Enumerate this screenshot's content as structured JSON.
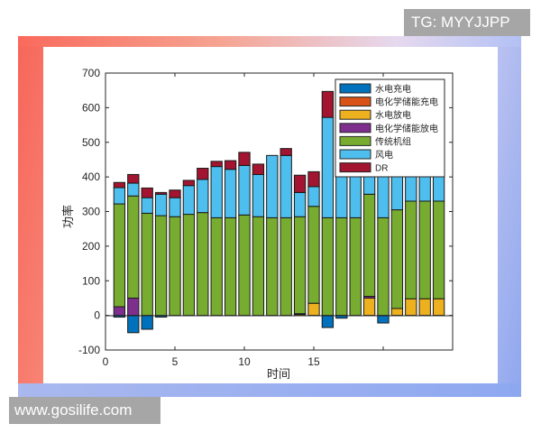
{
  "watermarks": {
    "top": "TG: MYYJJPP",
    "bottom": "www.gosilife.com"
  },
  "chart_data": {
    "type": "bar",
    "stacked": true,
    "title": "",
    "xlabel": "时间",
    "ylabel": "功率",
    "xlim": [
      0,
      25
    ],
    "ylim": [
      -100,
      700
    ],
    "xticks": [
      0,
      5,
      10,
      15
    ],
    "yticks": [
      -100,
      0,
      100,
      200,
      300,
      400,
      500,
      600,
      700
    ],
    "grid": false,
    "legend_position": "upper right (inside)",
    "categories": [
      1,
      2,
      3,
      4,
      5,
      6,
      7,
      8,
      9,
      10,
      11,
      12,
      13,
      14,
      15,
      16,
      17,
      18,
      19,
      20,
      21,
      22,
      23,
      24
    ],
    "series": [
      {
        "name": "水电充电",
        "color": "#0072BD",
        "values": [
          -5,
          -50,
          -40,
          -5,
          0,
          0,
          0,
          0,
          0,
          0,
          0,
          0,
          0,
          0,
          0,
          -35,
          -8,
          0,
          0,
          -22,
          0,
          0,
          0,
          0
        ]
      },
      {
        "name": "电化学储能充电",
        "color": "#D95319",
        "values": [
          0,
          0,
          0,
          0,
          0,
          0,
          0,
          0,
          0,
          0,
          0,
          0,
          0,
          0,
          0,
          0,
          0,
          0,
          0,
          0,
          0,
          0,
          0,
          0
        ]
      },
      {
        "name": "水电放电",
        "color": "#EDB120",
        "values": [
          0,
          0,
          0,
          0,
          0,
          0,
          0,
          0,
          0,
          0,
          0,
          0,
          0,
          3,
          35,
          0,
          0,
          0,
          50,
          0,
          20,
          48,
          48,
          48
        ]
      },
      {
        "name": "电化学储能放电",
        "color": "#7E2F8E",
        "values": [
          25,
          50,
          0,
          0,
          0,
          0,
          0,
          0,
          0,
          0,
          0,
          0,
          0,
          2,
          0,
          0,
          0,
          0,
          5,
          0,
          0,
          0,
          0,
          0
        ]
      },
      {
        "name": "传统机组",
        "color": "#77AC30",
        "values": [
          297,
          295,
          295,
          288,
          285,
          292,
          297,
          282,
          282,
          290,
          285,
          282,
          282,
          280,
          280,
          282,
          282,
          282,
          295,
          282,
          285,
          282,
          282,
          282
        ]
      },
      {
        "name": "风电",
        "color": "#4DBEEE",
        "values": [
          47,
          37,
          45,
          62,
          55,
          83,
          96,
          148,
          140,
          143,
          122,
          180,
          180,
          70,
          57,
          290,
          150,
          140,
          95,
          150,
          115,
          90,
          90,
          90
        ]
      },
      {
        "name": "DR",
        "color": "#A2142F",
        "values": [
          15,
          25,
          28,
          5,
          22,
          15,
          32,
          15,
          25,
          38,
          30,
          0,
          20,
          50,
          43,
          75,
          0,
          0,
          0,
          0,
          0,
          0,
          0,
          0
        ]
      }
    ]
  }
}
